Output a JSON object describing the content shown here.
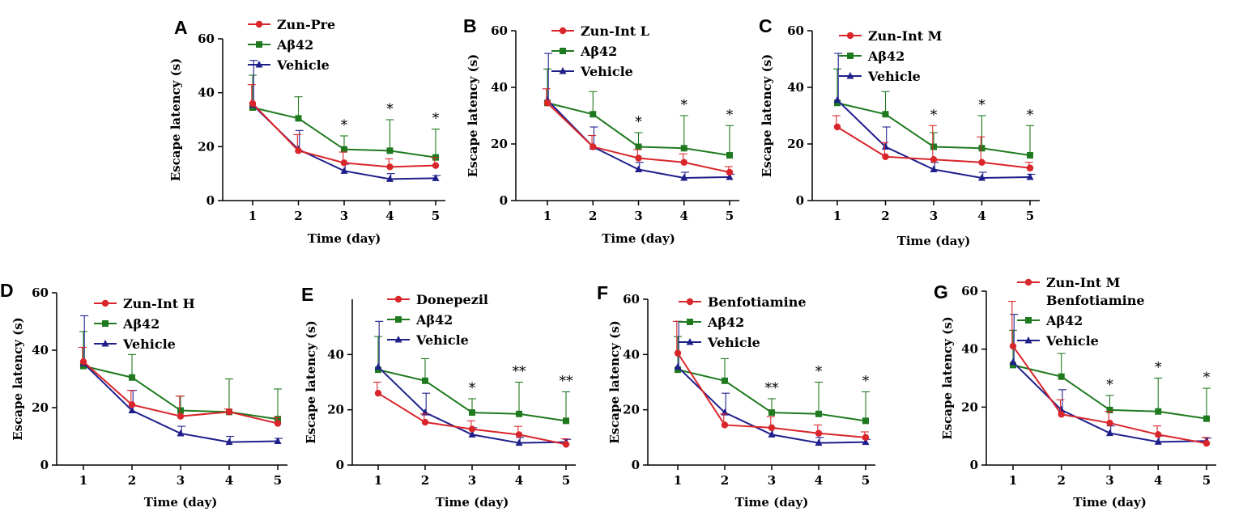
{
  "colors": {
    "red": "#d9262b",
    "green": "#1f7a1f",
    "blue": "#1f1f8c",
    "axis": "#000000"
  },
  "chart_data": [
    {
      "type": "line",
      "panel": "A",
      "xlabel": "Time (day)",
      "ylabel": "Escape latency (s)",
      "ylim": [
        0,
        60
      ],
      "yticks": [
        "0",
        "20",
        "40",
        "60"
      ],
      "x": [
        1,
        2,
        3,
        4,
        5
      ],
      "xticks": [
        "1",
        "2",
        "3",
        "4",
        "5"
      ],
      "series": [
        {
          "name": "Zun-Pre",
          "color": "red",
          "marker": "circle",
          "values": [
            36,
            18.5,
            14,
            12.5,
            13
          ],
          "errors": [
            7,
            6,
            4,
            3,
            3
          ]
        },
        {
          "name": "Aβ42",
          "color": "green",
          "marker": "square",
          "values": [
            34.5,
            30.5,
            19,
            18.5,
            16
          ],
          "errors": [
            12,
            8,
            5,
            11.5,
            10.5
          ]
        },
        {
          "name": "Vehicle",
          "color": "blue",
          "marker": "triangle",
          "values": [
            35.5,
            19,
            11,
            8,
            8.3
          ],
          "errors": [
            16.5,
            7,
            2.5,
            2,
            1
          ]
        }
      ],
      "significance": [
        {
          "x": 3,
          "label": "*"
        },
        {
          "x": 4,
          "label": "*"
        },
        {
          "x": 5,
          "label": "*"
        }
      ]
    },
    {
      "type": "line",
      "panel": "B",
      "xlabel": "Time (day)",
      "ylabel": "Escape latency (s)",
      "ylim": [
        0,
        60
      ],
      "yticks": [
        "0",
        "20",
        "40",
        "60"
      ],
      "x": [
        1,
        2,
        3,
        4,
        5
      ],
      "xticks": [
        "1",
        "2",
        "3",
        "4",
        "5"
      ],
      "series": [
        {
          "name": "Zun-Int L",
          "color": "red",
          "marker": "circle",
          "values": [
            34.5,
            19,
            15,
            13.5,
            10
          ],
          "errors": [
            5,
            4,
            3,
            3,
            2
          ]
        },
        {
          "name": "Aβ42",
          "color": "green",
          "marker": "square",
          "values": [
            34.5,
            30.5,
            19,
            18.5,
            16
          ],
          "errors": [
            12,
            8,
            5,
            11.5,
            10.5
          ]
        },
        {
          "name": "Vehicle",
          "color": "blue",
          "marker": "triangle",
          "values": [
            35.5,
            19,
            11,
            8,
            8.3
          ],
          "errors": [
            16.5,
            7,
            2.5,
            2,
            1
          ]
        }
      ],
      "significance": [
        {
          "x": 3,
          "label": "*"
        },
        {
          "x": 4,
          "label": "*"
        },
        {
          "x": 5,
          "label": "*"
        }
      ]
    },
    {
      "type": "line",
      "panel": "C",
      "xlabel": "Time  (day)",
      "ylabel": "Escape latency (s)",
      "ylim": [
        0,
        60
      ],
      "yticks": [
        "0",
        "20",
        "40",
        "60"
      ],
      "x": [
        1,
        2,
        3,
        4,
        5
      ],
      "xticks": [
        "1",
        "2",
        "3",
        "4",
        "5"
      ],
      "series": [
        {
          "name": "Zun-Int M",
          "color": "red",
          "marker": "circle",
          "values": [
            26,
            15.5,
            14.5,
            13.5,
            11.5
          ],
          "errors": [
            4,
            5,
            12,
            9,
            2
          ]
        },
        {
          "name": "Aβ42",
          "color": "green",
          "marker": "square",
          "values": [
            34.5,
            30.5,
            19,
            18.5,
            16
          ],
          "errors": [
            12,
            8,
            5,
            11.5,
            10.5
          ]
        },
        {
          "name": "Vehicle",
          "color": "blue",
          "marker": "triangle",
          "values": [
            35.5,
            19,
            11,
            8,
            8.3
          ],
          "errors": [
            16.5,
            7,
            2.5,
            2,
            1
          ]
        }
      ],
      "significance": [
        {
          "x": 3,
          "label": "*"
        },
        {
          "x": 4,
          "label": "*"
        },
        {
          "x": 5,
          "label": "*"
        }
      ]
    },
    {
      "type": "line",
      "panel": "D",
      "xlabel": "Time  (day)",
      "ylabel": "Escape latency (s)",
      "ylim": [
        0,
        60
      ],
      "yticks": [
        "0",
        "20",
        "40",
        "60"
      ],
      "x": [
        1,
        2,
        3,
        4,
        5
      ],
      "xticks": [
        "1",
        "2",
        "3",
        "4",
        "5"
      ],
      "series": [
        {
          "name": "Zun-Int H",
          "color": "red",
          "marker": "circle",
          "values": [
            36,
            21,
            17,
            18.5,
            14.5
          ],
          "errors": [
            5,
            5,
            7,
            1,
            2
          ]
        },
        {
          "name": "Aβ42",
          "color": "green",
          "marker": "square",
          "values": [
            34.5,
            30.5,
            19,
            18.5,
            16
          ],
          "errors": [
            12,
            8,
            5,
            11.5,
            10.5
          ]
        },
        {
          "name": "Vehicle",
          "color": "blue",
          "marker": "triangle",
          "values": [
            35.5,
            19,
            11,
            8,
            8.3
          ],
          "errors": [
            16.5,
            7,
            2.5,
            2,
            1
          ]
        }
      ],
      "significance": []
    },
    {
      "type": "line",
      "panel": "E",
      "xlabel": "Time  (day)",
      "ylabel": "Escape latency (s)",
      "ylim": [
        0,
        60
      ],
      "yticks": [
        "0",
        "20",
        "40"
      ],
      "x": [
        1,
        2,
        3,
        4,
        5
      ],
      "xticks": [
        "1",
        "2",
        "3",
        "4",
        "5"
      ],
      "series": [
        {
          "name": "Donepezil",
          "color": "red",
          "marker": "circle",
          "values": [
            26,
            15.5,
            13,
            11,
            7.5
          ],
          "errors": [
            4,
            3,
            3,
            3,
            2
          ]
        },
        {
          "name": "Aβ42",
          "color": "green",
          "marker": "square",
          "values": [
            34.5,
            30.5,
            19,
            18.5,
            16
          ],
          "errors": [
            12,
            8,
            5,
            11.5,
            10.5
          ]
        },
        {
          "name": "Vehicle",
          "color": "blue",
          "marker": "triangle",
          "values": [
            35.5,
            19,
            11,
            8,
            8.3
          ],
          "errors": [
            16.5,
            7,
            2.5,
            2,
            1
          ]
        }
      ],
      "significance": [
        {
          "x": 3,
          "label": "*"
        },
        {
          "x": 4,
          "label": "**"
        },
        {
          "x": 5,
          "label": "**"
        }
      ]
    },
    {
      "type": "line",
      "panel": "F",
      "xlabel": "Time  (day)",
      "ylabel": "Escape latency (s)",
      "ylim": [
        0,
        60
      ],
      "yticks": [
        "0",
        "20",
        "40",
        "60"
      ],
      "x": [
        1,
        2,
        3,
        4,
        5
      ],
      "xticks": [
        "1",
        "2",
        "3",
        "4",
        "5"
      ],
      "series": [
        {
          "name": "Benfotiamine",
          "color": "red",
          "marker": "circle",
          "values": [
            40.5,
            14.5,
            13.5,
            11.5,
            10
          ],
          "errors": [
            11.5,
            4,
            4,
            3,
            2
          ]
        },
        {
          "name": "Aβ42",
          "color": "green",
          "marker": "square",
          "values": [
            34.5,
            30.5,
            19,
            18.5,
            16
          ],
          "errors": [
            12,
            8,
            5,
            11.5,
            10.5
          ]
        },
        {
          "name": "Vehicle",
          "color": "blue",
          "marker": "triangle",
          "values": [
            35.5,
            19,
            11,
            8,
            8.3
          ],
          "errors": [
            16.5,
            7,
            2.5,
            2,
            1
          ]
        }
      ],
      "significance": [
        {
          "x": 3,
          "label": "**"
        },
        {
          "x": 4,
          "label": "*"
        },
        {
          "x": 5,
          "label": "*"
        }
      ]
    },
    {
      "type": "line",
      "panel": "G",
      "xlabel": "Time  (day)",
      "ylabel": "Escape latency (s)",
      "ylim": [
        0,
        60
      ],
      "yticks": [
        "0",
        "20",
        "40",
        "60"
      ],
      "x": [
        1,
        2,
        3,
        4,
        5
      ],
      "xticks": [
        "1",
        "2",
        "3",
        "4",
        "5"
      ],
      "series": [
        {
          "name": "Zun-Int M\nBenfotiamine",
          "color": "red",
          "marker": "circle",
          "values": [
            41,
            17.5,
            14.5,
            10.5,
            7.5
          ],
          "errors": [
            15.5,
            5,
            4,
            3,
            2
          ]
        },
        {
          "name": "Aβ42",
          "color": "green",
          "marker": "square",
          "values": [
            34.5,
            30.5,
            19,
            18.5,
            16
          ],
          "errors": [
            12,
            8,
            5,
            11.5,
            10.5
          ]
        },
        {
          "name": "Vehicle",
          "color": "blue",
          "marker": "triangle",
          "values": [
            35.5,
            19,
            11,
            8,
            8.3
          ],
          "errors": [
            16.5,
            7,
            2.5,
            2,
            1
          ]
        }
      ],
      "significance": [
        {
          "x": 3,
          "label": "*"
        },
        {
          "x": 4,
          "label": "*"
        },
        {
          "x": 5,
          "label": "*"
        }
      ]
    }
  ]
}
